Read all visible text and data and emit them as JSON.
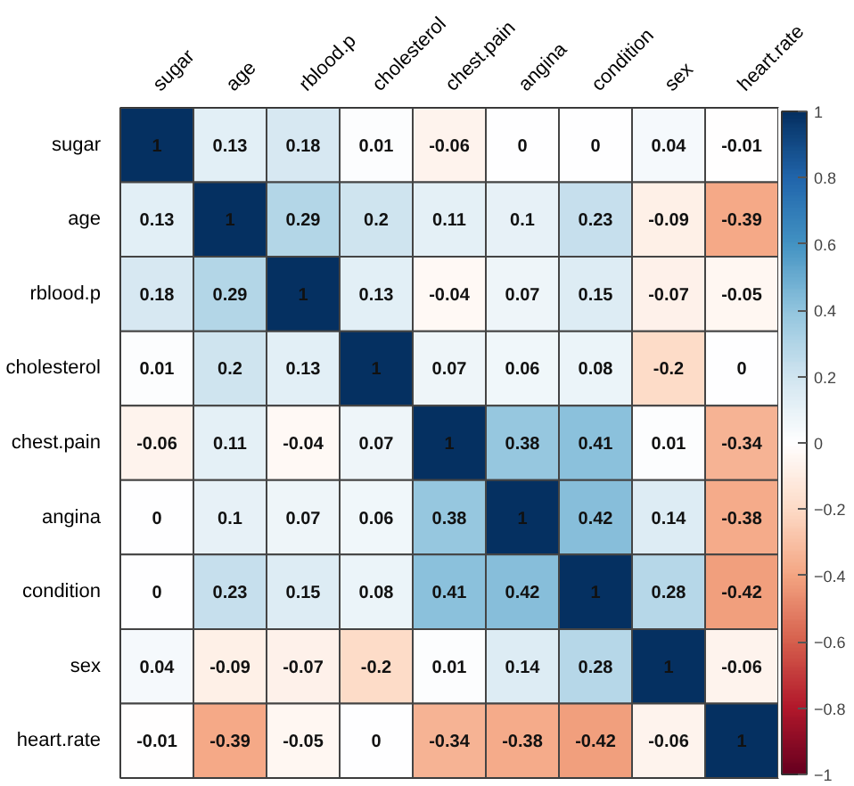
{
  "chart_data": {
    "type": "heatmap",
    "categories": [
      "sugar",
      "age",
      "rblood.p",
      "cholesterol",
      "chest.pain",
      "angina",
      "condition",
      "sex",
      "heart.rate"
    ],
    "y_categories": [
      "sugar",
      "age",
      "rblood.p",
      "cholesterol",
      "chest.pain",
      "angina",
      "condition",
      "sex",
      "heart.rate"
    ],
    "cells": [
      [
        1,
        0.13,
        0.18,
        0.01,
        -0.06,
        0,
        0,
        0.04,
        -0.01
      ],
      [
        0.13,
        1,
        0.29,
        0.2,
        0.11,
        0.1,
        0.23,
        -0.09,
        -0.39
      ],
      [
        0.18,
        0.29,
        1,
        0.13,
        -0.04,
        0.07,
        0.15,
        -0.07,
        -0.05
      ],
      [
        0.01,
        0.2,
        0.13,
        1,
        0.07,
        0.06,
        0.08,
        -0.2,
        0
      ],
      [
        -0.06,
        0.11,
        -0.04,
        0.07,
        1,
        0.38,
        0.41,
        0.01,
        -0.34
      ],
      [
        0,
        0.1,
        0.07,
        0.06,
        0.38,
        1,
        0.42,
        0.14,
        -0.38
      ],
      [
        0,
        0.23,
        0.15,
        0.08,
        0.41,
        0.42,
        1,
        0.28,
        -0.42
      ],
      [
        0.04,
        -0.09,
        -0.07,
        -0.2,
        0.01,
        0.14,
        0.28,
        1,
        -0.06
      ],
      [
        -0.01,
        -0.39,
        -0.05,
        0,
        -0.34,
        -0.38,
        -0.42,
        -0.06,
        1
      ]
    ],
    "data_labels": true,
    "clim": [
      -1,
      1
    ],
    "cticks": [
      -1,
      -0.8,
      -0.6,
      -0.4,
      -0.2,
      0,
      0.2,
      0.4,
      0.6,
      0.8,
      1
    ]
  }
}
